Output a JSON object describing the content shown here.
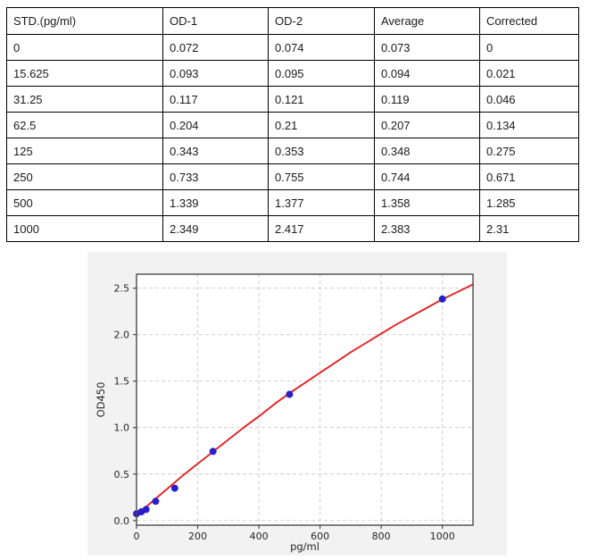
{
  "table": {
    "columns": [
      "STD.(pg/ml)",
      "OD-1",
      "OD-2",
      "Average",
      "Corrected"
    ],
    "rows": [
      [
        "0",
        "0.072",
        "0.074",
        "0.073",
        "0"
      ],
      [
        "15.625",
        "0.093",
        "0.095",
        "0.094",
        "0.021"
      ],
      [
        "31.25",
        "0.117",
        "0.121",
        "0.119",
        "0.046"
      ],
      [
        "62.5",
        "0.204",
        "0.21",
        "0.207",
        "0.134"
      ],
      [
        "125",
        "0.343",
        "0.353",
        "0.348",
        "0.275"
      ],
      [
        "250",
        "0.733",
        "0.755",
        "0.744",
        "0.671"
      ],
      [
        "500",
        "1.339",
        "1.377",
        "1.358",
        "1.285"
      ],
      [
        "1000",
        "2.349",
        "2.417",
        "2.383",
        "2.31"
      ]
    ]
  },
  "chart_data": {
    "type": "scatter",
    "title": "",
    "xlabel": "pg/ml",
    "ylabel": "OD450",
    "xlim": [
      0,
      1100
    ],
    "ylim": [
      -0.05,
      2.65
    ],
    "grid": true,
    "x_ticks": [
      0,
      200,
      400,
      600,
      800,
      1000
    ],
    "x_tick_labels": [
      "0",
      "200",
      "400",
      "600",
      "800",
      "1000"
    ],
    "y_ticks": [
      0.0,
      0.5,
      1.0,
      1.5,
      2.0,
      2.5
    ],
    "y_tick_labels": [
      "0.0",
      "0.5",
      "1.0",
      "1.5",
      "2.0",
      "2.5"
    ],
    "series": [
      {
        "name": "standard-points",
        "kind": "scatter",
        "x": [
          0,
          15.625,
          31.25,
          62.5,
          125,
          250,
          500,
          1000
        ],
        "y": [
          0.073,
          0.094,
          0.119,
          0.207,
          0.348,
          0.744,
          1.358,
          2.383
        ]
      },
      {
        "name": "fit-curve",
        "kind": "line",
        "x": [
          0,
          50,
          100,
          150,
          200,
          250,
          300,
          350,
          400,
          450,
          500,
          550,
          600,
          650,
          700,
          750,
          800,
          850,
          900,
          950,
          1000,
          1050,
          1100
        ],
        "y": [
          0.06,
          0.2,
          0.34,
          0.48,
          0.61,
          0.74,
          0.87,
          1.0,
          1.12,
          1.25,
          1.37,
          1.48,
          1.59,
          1.7,
          1.81,
          1.91,
          2.01,
          2.11,
          2.2,
          2.29,
          2.38,
          2.46,
          2.54
        ]
      }
    ],
    "colors": {
      "points": "#2a1ecb",
      "curve": "#e32222",
      "grid": "#c9c9c9",
      "figure_bg": "#f2f2f2",
      "plot_bg": "#ffffff",
      "spine": "#4a4a4a",
      "text": "#262626"
    }
  }
}
